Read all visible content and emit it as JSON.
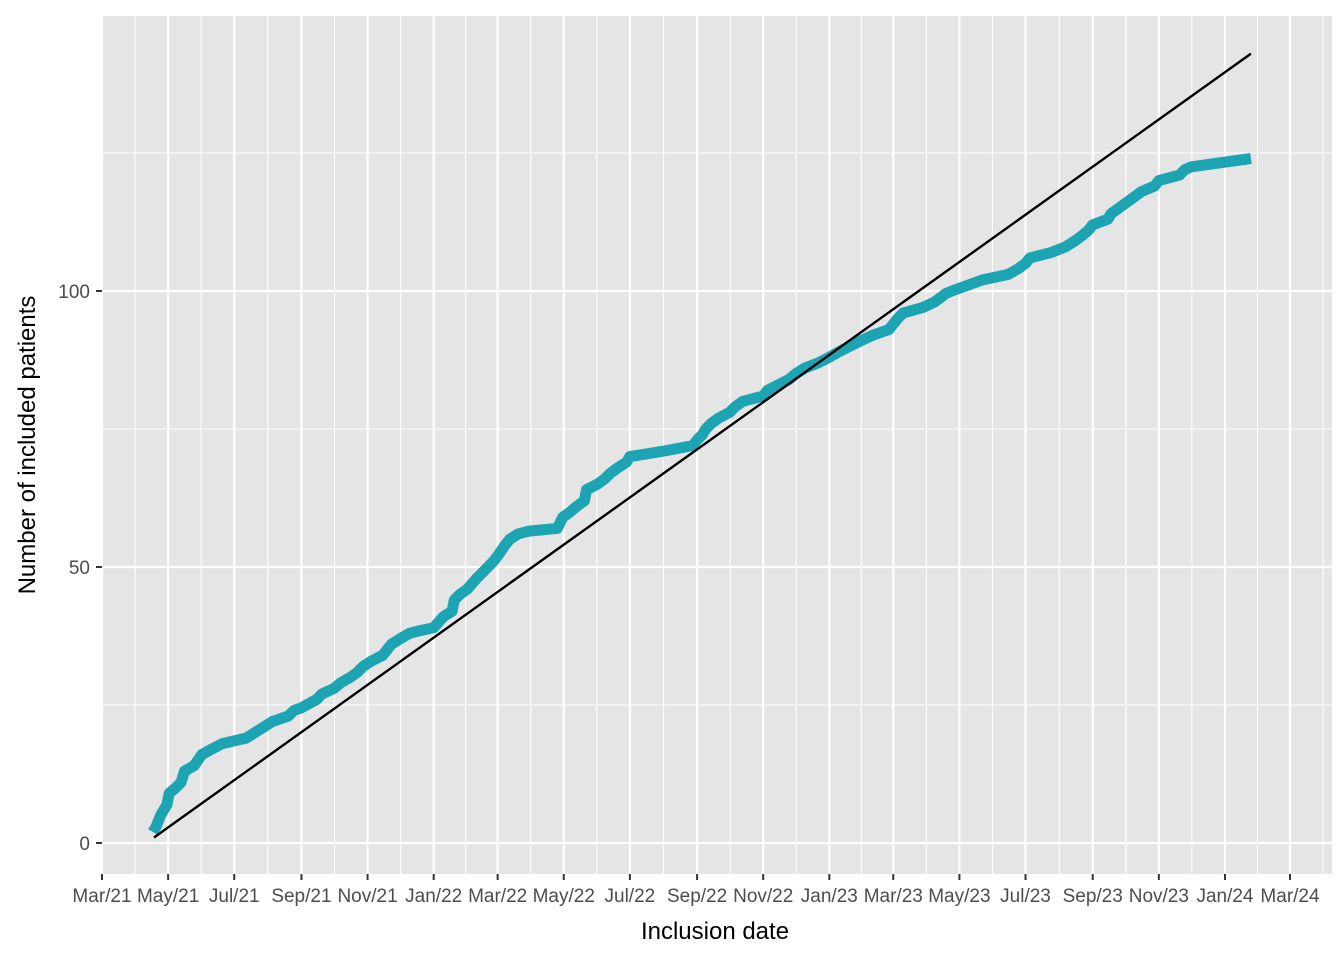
{
  "chart_data": {
    "type": "line",
    "title": "",
    "xlabel": "Inclusion date",
    "ylabel": "Number of included patients",
    "x_type": "date",
    "xlim": [
      "2021-03-01",
      "2024-03-01"
    ],
    "ylim": [
      0,
      140
    ],
    "x_ticks": [
      "2021-03-01",
      "2021-05-01",
      "2021-07-01",
      "2021-09-01",
      "2021-11-01",
      "2022-01-01",
      "2022-03-01",
      "2022-05-01",
      "2022-07-01",
      "2022-09-01",
      "2022-11-01",
      "2023-01-01",
      "2023-03-01",
      "2023-05-01",
      "2023-07-01",
      "2023-09-01",
      "2023-11-01",
      "2024-01-01",
      "2024-03-01"
    ],
    "x_tick_labels": [
      "Mar/21",
      "May/21",
      "Jul/21",
      "Sep/21",
      "Nov/21",
      "Jan/22",
      "Mar/22",
      "May/22",
      "Jul/22",
      "Sep/22",
      "Nov/22",
      "Jan/23",
      "Mar/23",
      "May/23",
      "Jul/23",
      "Sep/23",
      "Nov/23",
      "Jan/24",
      "Mar/24"
    ],
    "y_ticks": [
      0,
      50,
      100
    ],
    "y_tick_labels": [
      "0",
      "50",
      "100"
    ],
    "grid": true,
    "legend": "none",
    "colors": {
      "panel_background": "#e5e5e5",
      "grid": "#ffffff",
      "cumulative_line": "#1da4b2",
      "target_line": "#000000"
    },
    "series": [
      {
        "role": "cumulative",
        "x": [
          "2021-04-17",
          "2021-04-20",
          "2021-04-22",
          "2021-04-24",
          "2021-04-27",
          "2021-04-30",
          "2021-05-02",
          "2021-05-08",
          "2021-05-13",
          "2021-05-16",
          "2021-05-25",
          "2021-06-01",
          "2021-06-10",
          "2021-06-20",
          "2021-07-01",
          "2021-07-12",
          "2021-07-20",
          "2021-08-05",
          "2021-08-20",
          "2021-08-25",
          "2021-09-01",
          "2021-09-15",
          "2021-09-20",
          "2021-10-01",
          "2021-10-07",
          "2021-10-16",
          "2021-10-23",
          "2021-10-28",
          "2021-11-05",
          "2021-11-15",
          "2021-11-23",
          "2021-12-01",
          "2021-12-10",
          "2021-12-20",
          "2022-01-01",
          "2022-01-10",
          "2022-01-18",
          "2022-01-20",
          "2022-01-25",
          "2022-02-01",
          "2022-02-10",
          "2022-02-15",
          "2022-02-25",
          "2022-03-01",
          "2022-03-08",
          "2022-03-12",
          "2022-03-20",
          "2022-03-30",
          "2022-04-25",
          "2022-04-30",
          "2022-05-07",
          "2022-05-13",
          "2022-05-20",
          "2022-05-22",
          "2022-06-01",
          "2022-06-08",
          "2022-06-13",
          "2022-06-20",
          "2022-06-28",
          "2022-07-01",
          "2022-08-01",
          "2022-08-28",
          "2022-09-01",
          "2022-09-06",
          "2022-09-09",
          "2022-09-14",
          "2022-09-21",
          "2022-10-01",
          "2022-10-06",
          "2022-10-13",
          "2022-11-01",
          "2022-11-05",
          "2022-11-15",
          "2022-11-25",
          "2022-12-01",
          "2022-12-09",
          "2022-12-22",
          "2023-01-01",
          "2023-01-10",
          "2023-01-20",
          "2023-01-30",
          "2023-02-10",
          "2023-02-25",
          "2023-03-01",
          "2023-03-05",
          "2023-03-10",
          "2023-03-28",
          "2023-04-08",
          "2023-04-15",
          "2023-04-18",
          "2023-04-24",
          "2023-05-08",
          "2023-05-22",
          "2023-06-15",
          "2023-06-24",
          "2023-07-01",
          "2023-07-05",
          "2023-07-25",
          "2023-08-07",
          "2023-08-15",
          "2023-08-22",
          "2023-08-28",
          "2023-09-01",
          "2023-09-15",
          "2023-09-18",
          "2023-09-25",
          "2023-10-02",
          "2023-10-09",
          "2023-10-16",
          "2023-10-28",
          "2023-11-01",
          "2023-11-20",
          "2023-11-25",
          "2023-12-01",
          "2024-01-25"
        ],
        "values": [
          2,
          3,
          4,
          5,
          6,
          7,
          9,
          10,
          11,
          13,
          14,
          16,
          17,
          18,
          18.5,
          19,
          20,
          22,
          23,
          24,
          24.5,
          26,
          27,
          28,
          29,
          30,
          31,
          32,
          33,
          34,
          36,
          37,
          38,
          38.5,
          39,
          41,
          42,
          44,
          45,
          46,
          48,
          49,
          51,
          52,
          54,
          55,
          56,
          56.5,
          57,
          59,
          60,
          61,
          62,
          64,
          65,
          66,
          67,
          68,
          69,
          70,
          71,
          72,
          73,
          74,
          75,
          76,
          77,
          78,
          79,
          80,
          81,
          82,
          83,
          84,
          85,
          86,
          87,
          88,
          89,
          90,
          91,
          92,
          93,
          94,
          95,
          96,
          97,
          98,
          99,
          99.5,
          100,
          101,
          102,
          103,
          104,
          105,
          106,
          107,
          108,
          109,
          110,
          111,
          112,
          113,
          114,
          115,
          116,
          117,
          118,
          119,
          120,
          121,
          122,
          122.5,
          124
        ]
      },
      {
        "role": "target",
        "x": [
          "2021-04-18",
          "2024-01-25"
        ],
        "values": [
          1,
          143
        ]
      }
    ]
  }
}
